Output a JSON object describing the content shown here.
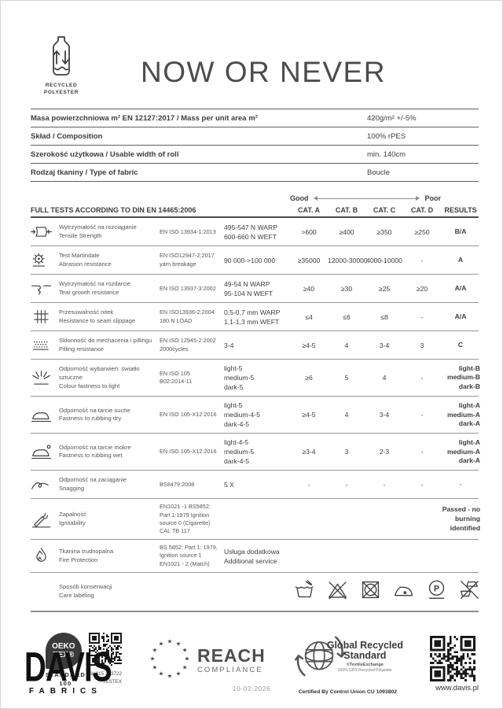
{
  "page": {
    "recycled_badge": {
      "line1": "RECYCLED",
      "line2": "POLYESTER"
    },
    "title": "NOW OR NEVER"
  },
  "properties": [
    {
      "label": "Masa powierzchniowa m² EN 12127:2017 / Mass per unit area m²",
      "value": "420g/m² +/-5%"
    },
    {
      "label": "Skład / Composition",
      "value": "100% rPES"
    },
    {
      "label": "Szerokość użytkowa / Usable width of roll",
      "value": "min. 140cm"
    },
    {
      "label": "Rodzaj tkaniny / Type of fabric",
      "value": "Boucle"
    }
  ],
  "tests": {
    "heading": "FULL TESTS ACCORDING TO DIN EN 14465:2006",
    "scale": {
      "good": "Good",
      "poor": "Poor"
    },
    "columns": [
      "CAT. A",
      "CAT. B",
      "CAT. C",
      "CAT. D",
      "RESULTS"
    ],
    "rows": [
      {
        "icon": "tensile-strength-icon",
        "name_pl": "Wytrzymałość na rozciąganie",
        "name_en": "Tensile Strength",
        "standard": [
          "EN ISO 13934-1:2013"
        ],
        "value": [
          "495-547 N WARP",
          "600-660 N WEFT"
        ],
        "cats": [
          ">600",
          "≥400",
          "≥350",
          "≥250"
        ],
        "result": [
          "B/A"
        ],
        "result_bold": true
      },
      {
        "icon": "abrasion-icon",
        "name_pl": "Test Martindale",
        "name_en": "Abrasion resistance",
        "standard": [
          "EN ISO12947-2:2017",
          "yarn breakage"
        ],
        "value": [
          "90 000->100 000"
        ],
        "cats": [
          "≥35000",
          "12000-30000",
          "4000-10000",
          "-"
        ],
        "result": [
          "A"
        ],
        "result_bold": true
      },
      {
        "icon": "tear-icon",
        "name_pl": "Wytrzymałość na rozdarcie",
        "name_en": "Tear growth resistance",
        "standard": [
          "EN ISO 13937-3:2002"
        ],
        "value": [
          "49-54 N WARP",
          "95-104 N WEFT"
        ],
        "cats": [
          "≥40",
          "≥30",
          "≥25",
          "≥20"
        ],
        "result": [
          "A/A"
        ],
        "result_bold": true
      },
      {
        "icon": "seam-slippage-icon",
        "name_pl": "Przesuwalność nitek",
        "name_en": "Resistance to seam slippage",
        "standard": [
          "EN ISO13936-2:2004",
          "180 N LOAD"
        ],
        "value": [
          "0,5-0,7 mm WARP",
          "1,1-1,3 mm WEFT"
        ],
        "cats": [
          "≤4",
          "≤6",
          "≤8",
          "-"
        ],
        "result": [
          "A/A"
        ],
        "result_bold": true
      },
      {
        "icon": "pilling-icon",
        "name_pl": "Skłonność do mechacenia i pillingu",
        "name_en": "Pilling resistance",
        "standard": [
          "EN ISO 12945-2:2002",
          "2000cycles"
        ],
        "value": [
          "3-4"
        ],
        "cats": [
          "≥4-5",
          "4",
          "3-4",
          "3"
        ],
        "result": [
          "C"
        ],
        "result_bold": true
      },
      {
        "icon": "light-fastness-icon",
        "name_pl": "Odporność wybarwień: światło sztuczne",
        "name_en": "Colour fastness to light",
        "standard": [
          "EN ISO 105",
          "B02:2014-11"
        ],
        "value": [
          "light-5",
          "medium-5",
          "dark-5"
        ],
        "cats": [
          "≥6",
          "5",
          "4",
          "-"
        ],
        "result": [
          "light-B",
          "medium-B",
          "dark-B"
        ],
        "result_bold": true
      },
      {
        "icon": "rubbing-dry-icon",
        "name_pl": "Odporność na tarcie suche",
        "name_en": "Fastness to rubbing dry",
        "standard": [
          "EN ISO 105-X12:2016"
        ],
        "value": [
          "light-5",
          "medium-4-5",
          "dark-4-5"
        ],
        "cats": [
          "≥4-5",
          "4",
          "3-4",
          "-"
        ],
        "result": [
          "light-A",
          "medium-A",
          "dark-A"
        ],
        "result_bold": true
      },
      {
        "icon": "rubbing-wet-icon",
        "name_pl": "Odporność na tarcie mokre",
        "name_en": "Fastness to rubbing wet",
        "standard": [
          "EN ISO 105-X12:2016"
        ],
        "value": [
          "light-4-5",
          "medium-5",
          "dark-4-5"
        ],
        "cats": [
          "≥3-4",
          "3",
          "2-3",
          "-"
        ],
        "result": [
          "light-A",
          "medium-A",
          "dark-A"
        ],
        "result_bold": true
      },
      {
        "icon": "snagging-icon",
        "name_pl": "Odporność na zaciąganie",
        "name_en": "Snagging",
        "standard": [
          "BS8479:2008"
        ],
        "value": [
          "5 X"
        ],
        "cats": [
          "-",
          "-",
          "-",
          "-"
        ],
        "result": [
          "-"
        ],
        "result_bold": false
      },
      {
        "icon": "ignitability-icon",
        "name_pl": "Zapalność",
        "name_en": "Ignitability",
        "standard": [
          "EN1021 -1 BS5852:",
          "Part 1:1979 Ignition",
          "source 0 (Cigarette)",
          "CAL TB 117"
        ],
        "value": [],
        "cats": [
          "",
          "",
          "",
          ""
        ],
        "result": [
          "Passed - no",
          "burning",
          "identified"
        ],
        "result_bold": true
      },
      {
        "icon": "fire-protection-icon",
        "name_pl": "Tkanina trudnopalna",
        "name_en": "Fire Protection",
        "standard": [
          "BS 5852: Part 1: 1979,",
          "Ignition source 1",
          "EN1021 - 2 (Match)"
        ],
        "value": [
          "Usługa dodatkowa",
          "Additional service"
        ],
        "cats": [
          "",
          "",
          "",
          ""
        ],
        "result": [],
        "result_bold": false
      }
    ]
  },
  "care": {
    "label_pl": "Sposób konserwacji",
    "label_en": "Care labeling",
    "icons": [
      "hand-wash-icon",
      "do-not-bleach-icon",
      "do-not-tumble-dry-icon",
      "iron-one-dot-icon",
      "dry-clean-p-icon",
      "do-not-steam-icon"
    ]
  },
  "certifications": {
    "oeko": {
      "logo_line1": "OEKO",
      "logo_line2": "TEX®",
      "sub1": "STANDARD",
      "sub2": "100",
      "qr_caption_line1": "SH015 203722",
      "qr_caption_line2": "TESTEX"
    },
    "reach": {
      "title": "REACH",
      "subtitle": "COMPLIANCE"
    },
    "grs": {
      "title_line1": "Global Recycled",
      "title_line2": "Standard",
      "sub1": "©TextileExchange",
      "sub2": "100% GRS Recycled Polyester",
      "caption": "Certified By Control Union CU 1093802"
    }
  },
  "footer": {
    "brand": "DAVIS",
    "brand_sub": "FABRICS",
    "date": "10-02-2026",
    "website": "www.davis.pl"
  },
  "colors": {
    "text": "#3d3d3d",
    "rule_dark": "#4c4c4c",
    "rule_light": "#979797",
    "logo_black": "#111111"
  }
}
